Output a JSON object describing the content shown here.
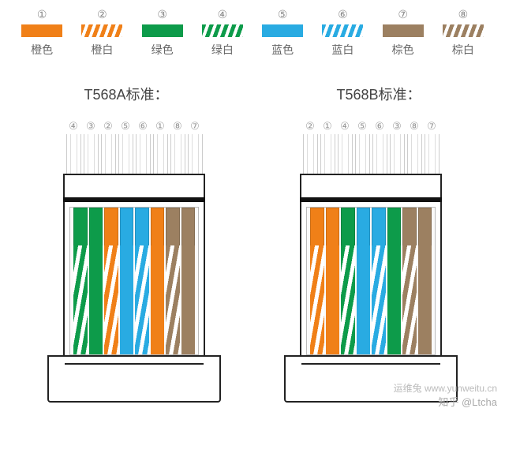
{
  "colors": {
    "orange": "#f08018",
    "green": "#0d9b4a",
    "blue": "#29abe2",
    "brown": "#9c8061",
    "white": "#ffffff",
    "outline": "#222222"
  },
  "legend": [
    {
      "num": "①",
      "label": "橙色",
      "type": "solid",
      "color": "#f08018"
    },
    {
      "num": "②",
      "label": "橙白",
      "type": "striped",
      "color": "#f08018"
    },
    {
      "num": "③",
      "label": "绿色",
      "type": "solid",
      "color": "#0d9b4a"
    },
    {
      "num": "④",
      "label": "绿白",
      "type": "striped",
      "color": "#0d9b4a"
    },
    {
      "num": "⑤",
      "label": "蓝色",
      "type": "solid",
      "color": "#29abe2"
    },
    {
      "num": "⑥",
      "label": "蓝白",
      "type": "striped",
      "color": "#29abe2"
    },
    {
      "num": "⑦",
      "label": "棕色",
      "type": "solid",
      "color": "#9c8061"
    },
    {
      "num": "⑧",
      "label": "棕白",
      "type": "striped",
      "color": "#9c8061"
    }
  ],
  "standards": [
    {
      "title": "T568A标准：",
      "pins": [
        "④",
        "③",
        "②",
        "⑤",
        "⑥",
        "①",
        "⑧",
        "⑦"
      ],
      "wires": [
        {
          "color": "#0d9b4a",
          "type": "striped"
        },
        {
          "color": "#0d9b4a",
          "type": "solid"
        },
        {
          "color": "#f08018",
          "type": "striped"
        },
        {
          "color": "#29abe2",
          "type": "solid"
        },
        {
          "color": "#29abe2",
          "type": "striped"
        },
        {
          "color": "#f08018",
          "type": "solid"
        },
        {
          "color": "#9c8061",
          "type": "striped"
        },
        {
          "color": "#9c8061",
          "type": "solid"
        }
      ]
    },
    {
      "title": "T568B标准：",
      "pins": [
        "②",
        "①",
        "④",
        "⑤",
        "⑥",
        "③",
        "⑧",
        "⑦"
      ],
      "wires": [
        {
          "color": "#f08018",
          "type": "striped"
        },
        {
          "color": "#f08018",
          "type": "solid"
        },
        {
          "color": "#0d9b4a",
          "type": "striped"
        },
        {
          "color": "#29abe2",
          "type": "solid"
        },
        {
          "color": "#29abe2",
          "type": "striped"
        },
        {
          "color": "#0d9b4a",
          "type": "solid"
        },
        {
          "color": "#9c8061",
          "type": "striped"
        },
        {
          "color": "#9c8061",
          "type": "solid"
        }
      ]
    }
  ],
  "watermarks": {
    "domain": "运维兔 www.yunweitu.cn",
    "zhihu": "知乎 @Ltcha"
  }
}
